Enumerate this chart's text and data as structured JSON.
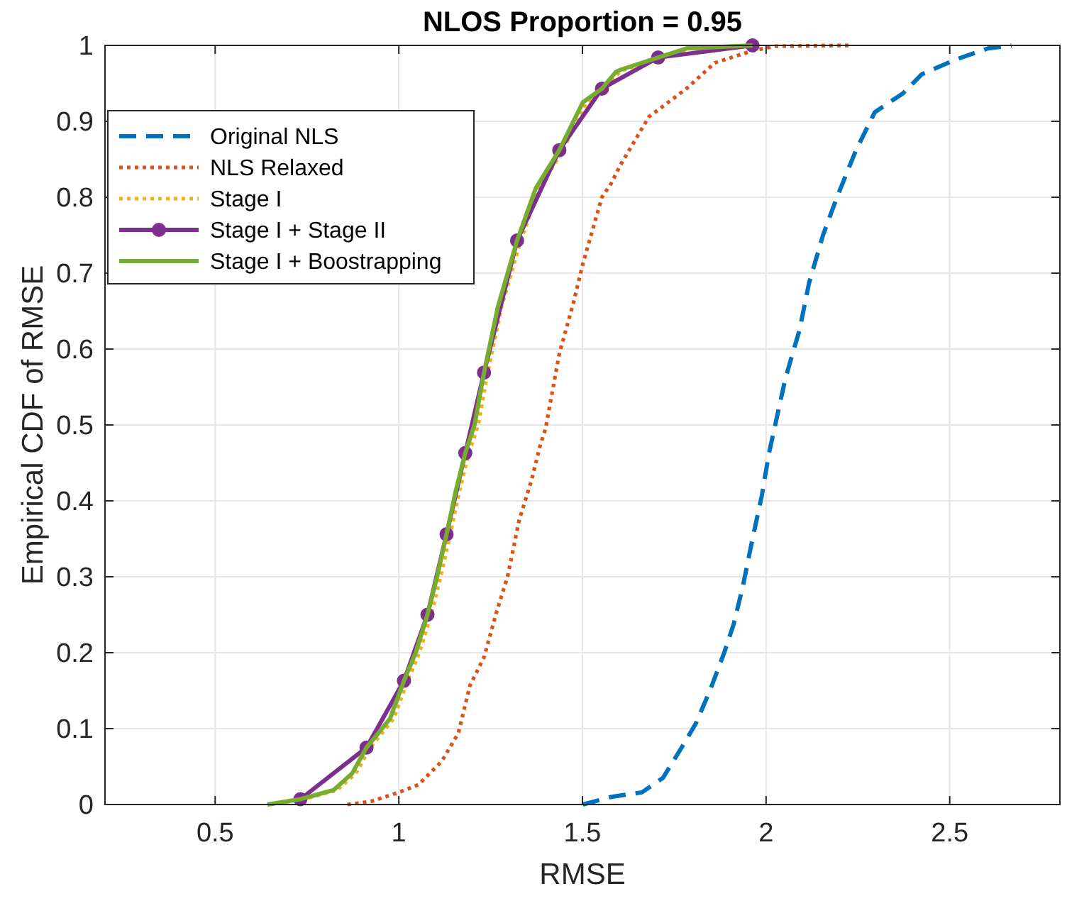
{
  "chart_data": {
    "type": "line",
    "title": "NLOS Proportion = 0.95",
    "xlabel": "RMSE",
    "ylabel": "Empirical CDF of RMSE",
    "xlim": [
      0.2,
      2.8
    ],
    "ylim": [
      0,
      1
    ],
    "xticks": [
      0.5,
      1,
      1.5,
      2,
      2.5
    ],
    "yticks": [
      0,
      0.1,
      0.2,
      0.3,
      0.4,
      0.5,
      0.6,
      0.7,
      0.8,
      0.9,
      1
    ],
    "grid": true,
    "legend": "top left",
    "marker": "none",
    "series": [
      {
        "name": "Original NLS",
        "color": "#0072bd",
        "line_style": "dashed",
        "x": [
          1.501,
          1.578,
          1.662,
          1.719,
          1.77,
          1.809,
          1.847,
          1.886,
          1.912,
          1.937,
          1.963,
          1.988,
          2.008,
          2.053,
          2.091,
          2.117,
          2.155,
          2.193,
          2.245,
          2.296,
          2.373,
          2.424,
          2.514,
          2.604,
          2.668
        ],
        "values": [
          0,
          0.01,
          0.016,
          0.035,
          0.075,
          0.107,
          0.15,
          0.2,
          0.238,
          0.288,
          0.35,
          0.406,
          0.463,
          0.562,
          0.625,
          0.687,
          0.75,
          0.8,
          0.862,
          0.912,
          0.937,
          0.962,
          0.981,
          0.996,
          1
        ]
      },
      {
        "name": "NLS Relaxed",
        "color": "#d95319",
        "line_style": "dotted",
        "x": [
          0.86,
          0.924,
          1.0,
          1.053,
          1.117,
          1.162,
          1.194,
          1.232,
          1.264,
          1.296,
          1.328,
          1.36,
          1.386,
          1.399,
          1.437,
          1.476,
          1.501,
          1.553,
          1.578,
          1.604,
          1.681,
          1.783,
          1.86,
          1.963,
          2.027,
          2.232
        ],
        "values": [
          0,
          0.004,
          0.016,
          0.026,
          0.057,
          0.094,
          0.157,
          0.194,
          0.25,
          0.3,
          0.375,
          0.425,
          0.475,
          0.494,
          0.594,
          0.662,
          0.712,
          0.8,
          0.818,
          0.843,
          0.906,
          0.943,
          0.977,
          0.993,
          0.999,
          1
        ]
      },
      {
        "name": "Stage I",
        "color": "#edb120",
        "line_style": "dotted",
        "x": [
          0.65,
          0.742,
          0.832,
          0.883,
          0.922,
          0.986,
          1.024,
          1.056,
          1.088,
          1.114,
          1.14,
          1.165,
          1.191,
          1.216,
          1.242,
          1.28,
          1.332,
          1.383,
          1.447,
          1.511,
          1.563,
          1.601,
          1.614,
          1.716,
          1.793,
          1.963
        ],
        "values": [
          0,
          0.007,
          0.019,
          0.041,
          0.075,
          0.113,
          0.163,
          0.2,
          0.25,
          0.3,
          0.356,
          0.413,
          0.463,
          0.5,
          0.569,
          0.656,
          0.743,
          0.812,
          0.862,
          0.925,
          0.943,
          0.965,
          0.968,
          0.984,
          0.996,
          1
        ]
      },
      {
        "name": "Stage I + Stage II",
        "color": "#7e2f8e",
        "line_style": "solid",
        "marker": "circle",
        "x": [
          0.732,
          0.912,
          1.014,
          1.078,
          1.13,
          1.181,
          1.232,
          1.322,
          1.437,
          1.553,
          1.706,
          1.963
        ],
        "values": [
          0.007,
          0.075,
          0.163,
          0.25,
          0.356,
          0.463,
          0.569,
          0.743,
          0.862,
          0.943,
          0.984,
          1
        ]
      },
      {
        "name": "Stage I + Boostrapping",
        "color": "#77ac30",
        "line_style": "solid",
        "x": [
          0.642,
          0.732,
          0.822,
          0.873,
          0.912,
          0.976,
          1.014,
          1.046,
          1.078,
          1.104,
          1.13,
          1.155,
          1.181,
          1.206,
          1.232,
          1.27,
          1.322,
          1.373,
          1.437,
          1.501,
          1.553,
          1.591,
          1.604,
          1.706,
          1.783,
          1.963
        ],
        "values": [
          0,
          0.007,
          0.019,
          0.041,
          0.075,
          0.113,
          0.163,
          0.2,
          0.25,
          0.3,
          0.356,
          0.413,
          0.463,
          0.5,
          0.569,
          0.656,
          0.743,
          0.812,
          0.862,
          0.925,
          0.943,
          0.965,
          0.968,
          0.984,
          0.996,
          1
        ]
      }
    ]
  }
}
